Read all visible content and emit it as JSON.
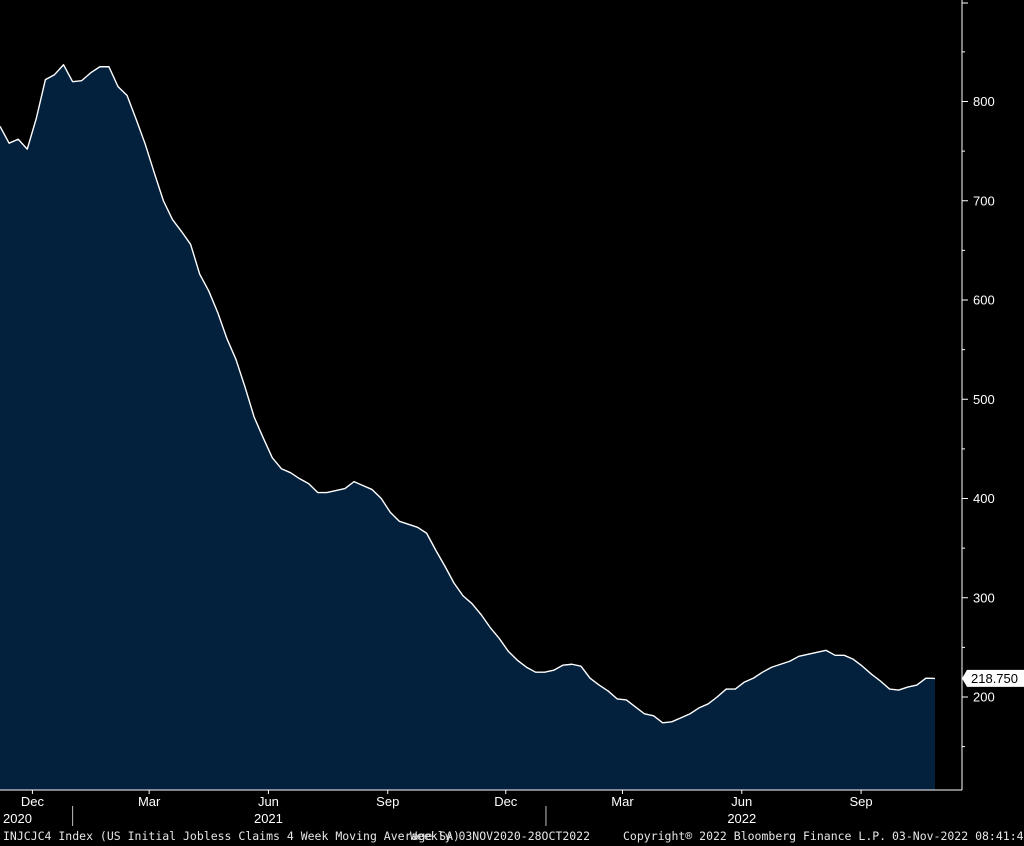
{
  "chart_data": {
    "type": "area",
    "title": "",
    "xlabel": "",
    "ylabel": "",
    "x": [
      "2020-11-06",
      "2020-11-13",
      "2020-11-20",
      "2020-11-27",
      "2020-12-04",
      "2020-12-11",
      "2020-12-18",
      "2020-12-25",
      "2021-01-01",
      "2021-01-08",
      "2021-01-15",
      "2021-01-22",
      "2021-01-29",
      "2021-02-05",
      "2021-02-12",
      "2021-02-19",
      "2021-02-26",
      "2021-03-05",
      "2021-03-12",
      "2021-03-19",
      "2021-03-26",
      "2021-04-02",
      "2021-04-09",
      "2021-04-16",
      "2021-04-23",
      "2021-04-30",
      "2021-05-07",
      "2021-05-14",
      "2021-05-21",
      "2021-05-28",
      "2021-06-04",
      "2021-06-11",
      "2021-06-18",
      "2021-06-25",
      "2021-07-02",
      "2021-07-09",
      "2021-07-16",
      "2021-07-23",
      "2021-07-30",
      "2021-08-06",
      "2021-08-13",
      "2021-08-20",
      "2021-08-27",
      "2021-09-03",
      "2021-09-10",
      "2021-09-17",
      "2021-09-24",
      "2021-10-01",
      "2021-10-08",
      "2021-10-15",
      "2021-10-22",
      "2021-10-29",
      "2021-11-05",
      "2021-11-12",
      "2021-11-19",
      "2021-11-26",
      "2021-12-03",
      "2021-12-10",
      "2021-12-17",
      "2021-12-24",
      "2021-12-31",
      "2022-01-07",
      "2022-01-14",
      "2022-01-21",
      "2022-01-28",
      "2022-02-04",
      "2022-02-11",
      "2022-02-18",
      "2022-02-25",
      "2022-03-04",
      "2022-03-11",
      "2022-03-18",
      "2022-03-25",
      "2022-04-01",
      "2022-04-08",
      "2022-04-15",
      "2022-04-22",
      "2022-04-29",
      "2022-05-06",
      "2022-05-13",
      "2022-05-20",
      "2022-05-27",
      "2022-06-03",
      "2022-06-10",
      "2022-06-17",
      "2022-06-24",
      "2022-07-01",
      "2022-07-08",
      "2022-07-15",
      "2022-07-22",
      "2022-07-29",
      "2022-08-05",
      "2022-08-12",
      "2022-08-19",
      "2022-08-26",
      "2022-09-02",
      "2022-09-09",
      "2022-09-16",
      "2022-09-23",
      "2022-09-30",
      "2022-10-07",
      "2022-10-14",
      "2022-10-21",
      "2022-10-28"
    ],
    "series": [
      {
        "name": "",
        "color": "#ffffff",
        "fill": "#03203d",
        "values": [
          775,
          758,
          762,
          752,
          783,
          822,
          827,
          837,
          820,
          821,
          829,
          835,
          835,
          815,
          806,
          782,
          757,
          728,
          700,
          681,
          669,
          656,
          626,
          609,
          587,
          561,
          540,
          512,
          482,
          461,
          441,
          430,
          426,
          420,
          415,
          406,
          406,
          408,
          410,
          417,
          413,
          409,
          400,
          386,
          377,
          374,
          371,
          365,
          348,
          332,
          315,
          302,
          294,
          283,
          270,
          259,
          246,
          237,
          230,
          225,
          225,
          227,
          232,
          233,
          231,
          219,
          212,
          206,
          198,
          197,
          190,
          183,
          181,
          174,
          175,
          179,
          183,
          189,
          193,
          200,
          208,
          208,
          215,
          219,
          225,
          230,
          233,
          236,
          241,
          243,
          245,
          247,
          242,
          242,
          238,
          231,
          223,
          216,
          208,
          207,
          210,
          212,
          219,
          218.75
        ]
      }
    ],
    "ylim": [
      115,
      860
    ],
    "y_ticks": [
      200,
      300,
      400,
      500,
      600,
      700,
      800
    ],
    "x_month_labels": [
      {
        "date": "2020-12-01",
        "label": "Dec"
      },
      {
        "date": "2021-03-01",
        "label": "Mar"
      },
      {
        "date": "2021-06-01",
        "label": "Jun"
      },
      {
        "date": "2021-09-01",
        "label": "Sep"
      },
      {
        "date": "2021-12-01",
        "label": "Dec"
      },
      {
        "date": "2022-03-01",
        "label": "Mar"
      },
      {
        "date": "2022-06-01",
        "label": "Jun"
      },
      {
        "date": "2022-09-01",
        "label": "Sep"
      }
    ],
    "x_year_labels": [
      {
        "date": "2020-11-06",
        "label": "2020"
      },
      {
        "date": "2021-06-01",
        "label": "2021"
      },
      {
        "date": "2022-06-01",
        "label": "2022"
      }
    ],
    "year_boundaries": [
      "2021-01-01",
      "2022-01-01"
    ],
    "last_value_label": "218.750",
    "grid": false,
    "legend": "none"
  },
  "footer": {
    "ticker": "INJCJC4 Index (US Initial Jobless Claims 4 Week Moving Average SA)",
    "range": "Weekly 03NOV2020-28OCT2022",
    "copyright": "Copyright® 2022 Bloomberg Finance L.P.",
    "timestamp": "03-Nov-2022 08:41:41"
  },
  "colors": {
    "background": "#000000",
    "area_fill": "#03203d",
    "line": "#ffffff",
    "axis": "#ffffff",
    "text": "#ffffff"
  }
}
